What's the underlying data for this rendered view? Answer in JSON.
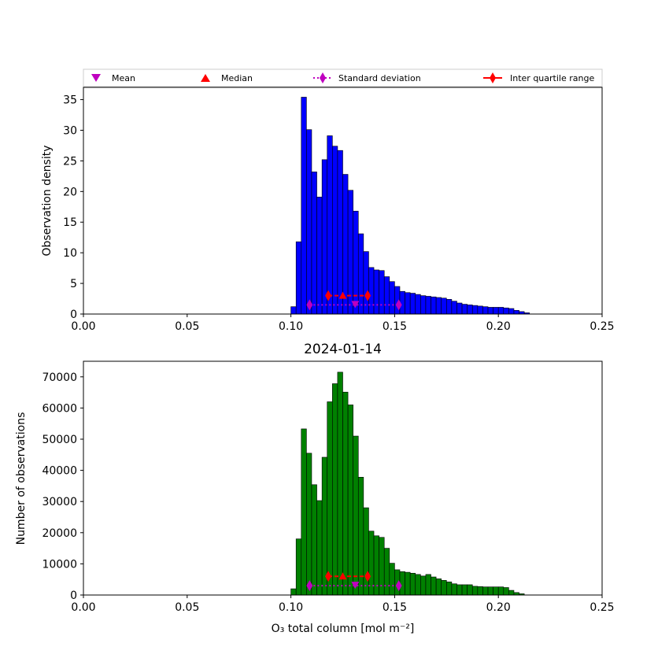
{
  "legend": {
    "mean": "Mean",
    "median": "Median",
    "std": "Standard deviation",
    "iqr": "Inter quartile range"
  },
  "colors": {
    "top_bars": "#0000ff",
    "bottom_bars": "#008000",
    "mean_marker": "#bf00bf",
    "std_marker": "#bf00bf",
    "median_marker": "#ff0000",
    "iqr_marker": "#ff0000"
  },
  "chart_data": [
    {
      "type": "bar",
      "subplot": "top",
      "title": "",
      "xlabel": "",
      "ylabel": "Observation density",
      "xlim": [
        0,
        0.25
      ],
      "ylim": [
        0,
        37
      ],
      "xticks": [
        "0.00",
        "0.05",
        "0.10",
        "0.15",
        "0.20",
        "0.25"
      ],
      "yticks": [
        "0",
        "5",
        "10",
        "15",
        "20",
        "25",
        "30",
        "35"
      ],
      "bin_start": 0.1,
      "bin_width": 0.0025,
      "values": [
        1.2,
        11.8,
        35.4,
        30.1,
        23.2,
        19.1,
        25.2,
        29.1,
        27.4,
        26.7,
        22.8,
        20.2,
        16.8,
        13.1,
        10.2,
        7.6,
        7.2,
        7.1,
        6.1,
        5.3,
        4.5,
        3.7,
        3.5,
        3.4,
        3.2,
        3.0,
        2.9,
        2.8,
        2.7,
        2.6,
        2.4,
        2.1,
        1.8,
        1.6,
        1.5,
        1.4,
        1.3,
        1.2,
        1.1,
        1.1,
        1.1,
        1.0,
        0.9,
        0.6,
        0.4,
        0.2
      ],
      "stats": {
        "mean": 0.131,
        "median": 0.125,
        "std_low": 0.109,
        "std_high": 0.152,
        "q1": 0.118,
        "q3": 0.137,
        "std_y": 1.5,
        "iqr_y": 3.0
      }
    },
    {
      "type": "bar",
      "subplot": "bottom",
      "title": "2024-01-14",
      "xlabel": "O₃ total column [mol m⁻²]",
      "ylabel": "Number of observations",
      "xlim": [
        0,
        0.25
      ],
      "ylim": [
        0,
        75000
      ],
      "xticks": [
        "0.00",
        "0.05",
        "0.10",
        "0.15",
        "0.20",
        "0.25"
      ],
      "yticks": [
        "0",
        "10000",
        "20000",
        "30000",
        "40000",
        "50000",
        "60000",
        "70000"
      ],
      "bin_start": 0.1,
      "bin_width": 0.0025,
      "values": [
        2000,
        18000,
        53300,
        45500,
        35400,
        30300,
        44200,
        62000,
        67800,
        71500,
        65100,
        61000,
        51000,
        37800,
        28000,
        20500,
        19000,
        18500,
        15000,
        10200,
        8100,
        7500,
        7300,
        7000,
        6600,
        6100,
        6600,
        5800,
        5200,
        4700,
        4200,
        3600,
        3300,
        3300,
        3300,
        2800,
        2700,
        2600,
        2600,
        2600,
        2600,
        2400,
        1500,
        800,
        400,
        0
      ],
      "stats": {
        "mean": 0.131,
        "median": 0.125,
        "std_low": 0.109,
        "std_high": 0.152,
        "q1": 0.118,
        "q3": 0.137,
        "std_y": 3000,
        "iqr_y": 6000
      }
    }
  ]
}
